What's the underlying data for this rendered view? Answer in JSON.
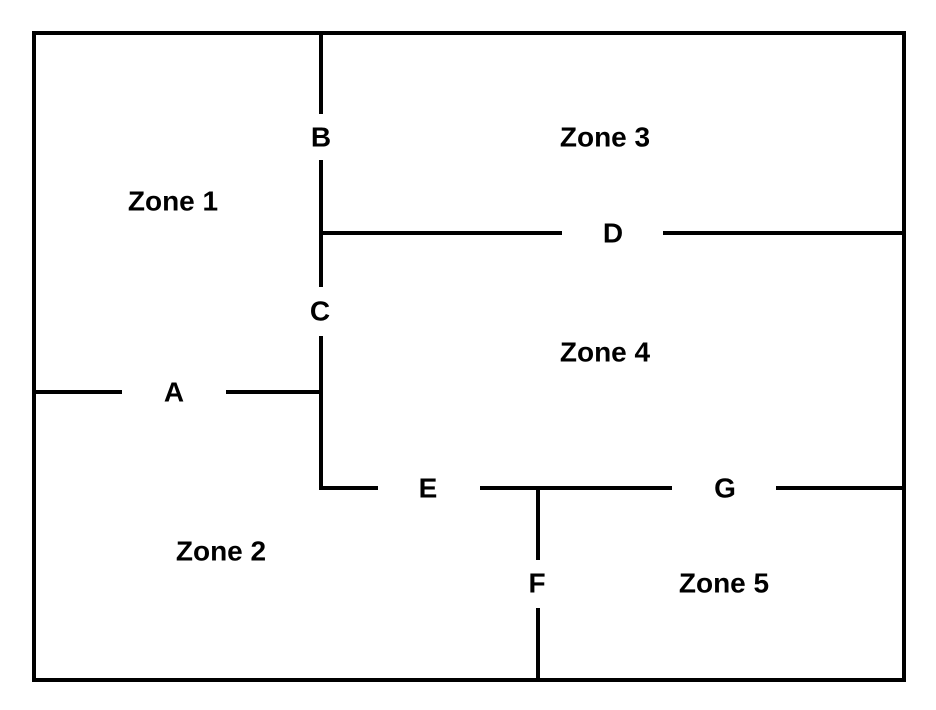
{
  "zones": [
    {
      "id": "zone-1",
      "label": "Zone 1"
    },
    {
      "id": "zone-2",
      "label": "Zone 2"
    },
    {
      "id": "zone-3",
      "label": "Zone 3"
    },
    {
      "id": "zone-4",
      "label": "Zone 4"
    },
    {
      "id": "zone-5",
      "label": "Zone 5"
    }
  ],
  "doors": [
    {
      "id": "door-a",
      "label": "A"
    },
    {
      "id": "door-b",
      "label": "B"
    },
    {
      "id": "door-c",
      "label": "C"
    },
    {
      "id": "door-d",
      "label": "D"
    },
    {
      "id": "door-e",
      "label": "E"
    },
    {
      "id": "door-f",
      "label": "F"
    },
    {
      "id": "door-g",
      "label": "G"
    }
  ]
}
